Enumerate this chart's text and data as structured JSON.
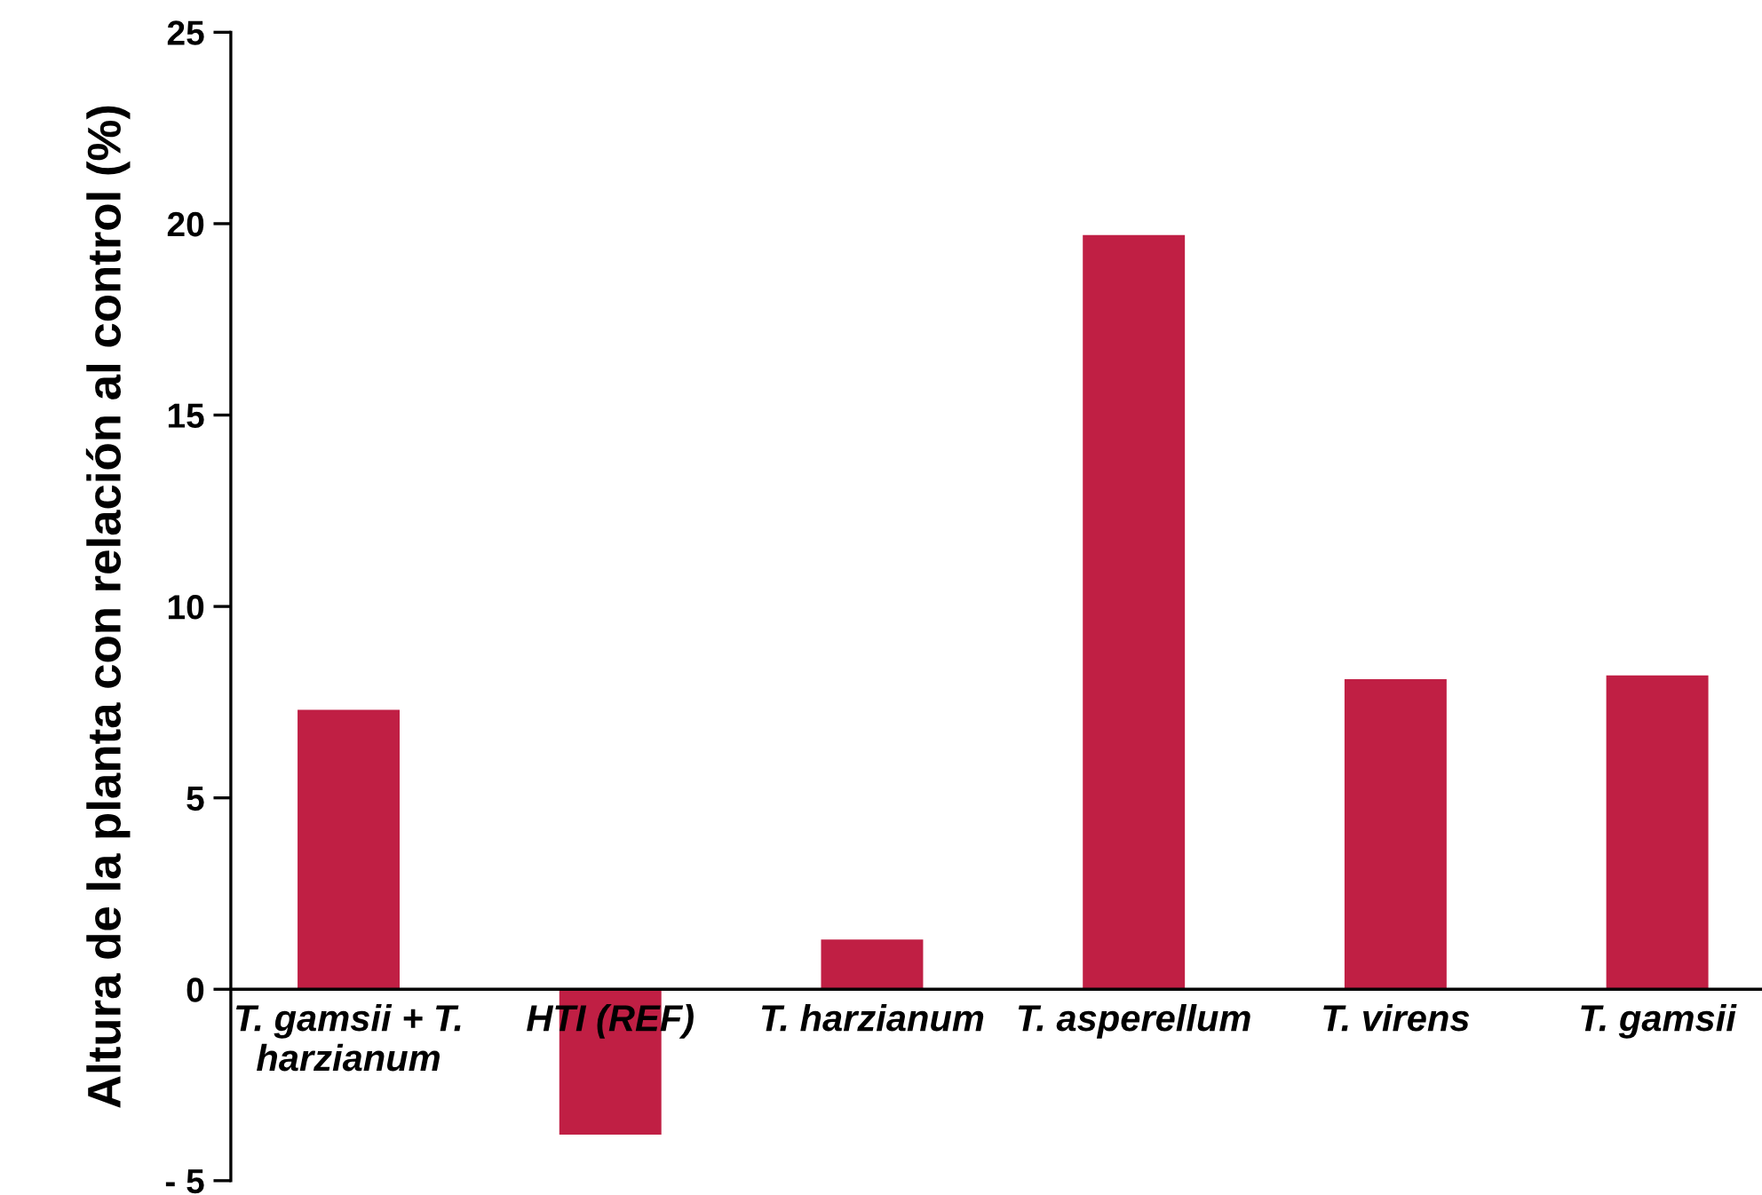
{
  "chart_data": {
    "type": "bar",
    "ylabel": "Altura de la planta con relación al control (%)",
    "categories": [
      "T. gamsii + T.\nharzianum",
      "HTI (REF)",
      "T. harzianum",
      "T. asperellum",
      "T. virens",
      "T. gamsii"
    ],
    "values": [
      7.3,
      -3.8,
      1.3,
      19.7,
      8.1,
      8.2
    ],
    "color": "#c01f44",
    "ylim": [
      -5,
      25
    ],
    "yticks": [
      {
        "value": -5,
        "label": "- 5"
      },
      0,
      5,
      10,
      15,
      20,
      25
    ],
    "grid": false
  }
}
